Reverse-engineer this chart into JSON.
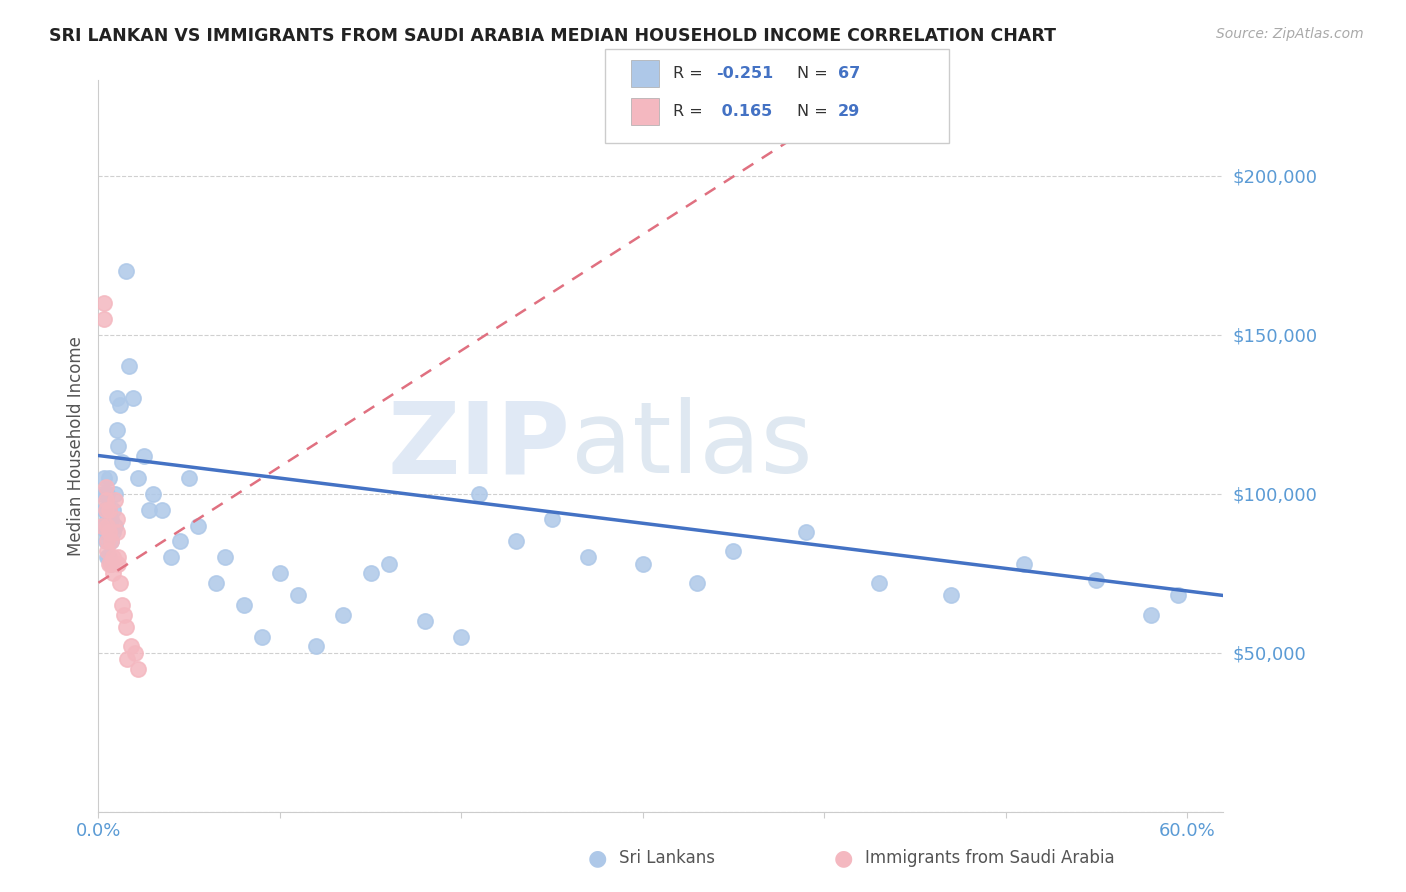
{
  "title": "SRI LANKAN VS IMMIGRANTS FROM SAUDI ARABIA MEDIAN HOUSEHOLD INCOME CORRELATION CHART",
  "source": "Source: ZipAtlas.com",
  "ylabel": "Median Household Income",
  "xlim": [
    0.0,
    0.62
  ],
  "ylim": [
    0,
    230000
  ],
  "yticks": [
    0,
    50000,
    100000,
    150000,
    200000
  ],
  "xticks": [
    0.0,
    0.1,
    0.2,
    0.3,
    0.4,
    0.5,
    0.6
  ],
  "background_color": "#ffffff",
  "grid_color": "#cccccc",
  "title_color": "#333333",
  "axis_color": "#5b9bd5",
  "watermark_text": "ZIP",
  "watermark_text2": "atlas",
  "sri_lankan_color": "#aec8e8",
  "saudi_color": "#f4b8c0",
  "sri_lankan_line_color": "#4472c4",
  "saudi_line_color": "#e07080",
  "sri_lankans_x": [
    0.002,
    0.003,
    0.003,
    0.003,
    0.004,
    0.004,
    0.004,
    0.004,
    0.005,
    0.005,
    0.005,
    0.005,
    0.005,
    0.006,
    0.006,
    0.006,
    0.006,
    0.007,
    0.007,
    0.007,
    0.008,
    0.008,
    0.009,
    0.009,
    0.01,
    0.01,
    0.011,
    0.012,
    0.013,
    0.015,
    0.017,
    0.019,
    0.022,
    0.025,
    0.028,
    0.03,
    0.035,
    0.04,
    0.045,
    0.05,
    0.055,
    0.065,
    0.07,
    0.08,
    0.09,
    0.1,
    0.11,
    0.12,
    0.135,
    0.15,
    0.16,
    0.18,
    0.2,
    0.21,
    0.23,
    0.25,
    0.27,
    0.3,
    0.33,
    0.35,
    0.39,
    0.43,
    0.47,
    0.51,
    0.55,
    0.58,
    0.595
  ],
  "sri_lankans_y": [
    100000,
    105000,
    95000,
    90000,
    88000,
    95000,
    100000,
    85000,
    92000,
    100000,
    88000,
    95000,
    80000,
    105000,
    95000,
    88000,
    80000,
    92000,
    85000,
    78000,
    95000,
    88000,
    100000,
    90000,
    130000,
    120000,
    115000,
    128000,
    110000,
    170000,
    140000,
    130000,
    105000,
    112000,
    95000,
    100000,
    95000,
    80000,
    85000,
    105000,
    90000,
    72000,
    80000,
    65000,
    55000,
    75000,
    68000,
    52000,
    62000,
    75000,
    78000,
    60000,
    55000,
    100000,
    85000,
    92000,
    80000,
    78000,
    72000,
    82000,
    88000,
    72000,
    68000,
    78000,
    73000,
    62000,
    68000
  ],
  "saudi_x": [
    0.002,
    0.003,
    0.003,
    0.004,
    0.004,
    0.004,
    0.005,
    0.005,
    0.005,
    0.006,
    0.006,
    0.006,
    0.007,
    0.007,
    0.008,
    0.008,
    0.009,
    0.01,
    0.01,
    0.011,
    0.011,
    0.012,
    0.013,
    0.014,
    0.015,
    0.016,
    0.018,
    0.02,
    0.022
  ],
  "saudi_y": [
    90000,
    160000,
    155000,
    102000,
    98000,
    95000,
    82000,
    90000,
    85000,
    95000,
    88000,
    78000,
    78000,
    85000,
    75000,
    80000,
    98000,
    92000,
    88000,
    80000,
    78000,
    72000,
    65000,
    62000,
    58000,
    48000,
    52000,
    50000,
    45000
  ],
  "sri_line_x0": 0.0,
  "sri_line_x1": 0.62,
  "sri_line_y0": 112000,
  "sri_line_y1": 68000,
  "saudi_line_x0": 0.0,
  "saudi_line_x1": 0.4,
  "saudi_line_y0": 72000,
  "saudi_line_y1": 218000
}
